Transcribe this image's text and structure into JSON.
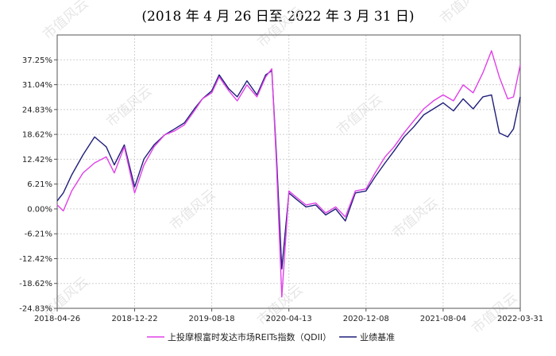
{
  "subtitle": "(2018 年 4 月 26 日至 2022 年 3 月 31 日)",
  "watermark_text": "市值风云",
  "chart_data": {
    "type": "line",
    "title": "",
    "xlabel": "",
    "ylabel": "",
    "x_ticks": [
      "2018-04-26",
      "2018-12-22",
      "2019-08-18",
      "2020-04-13",
      "2020-12-08",
      "2021-08-04",
      "2022-03-31"
    ],
    "y_ticks": [
      "37.25%",
      "31.04%",
      "24.83%",
      "18.62%",
      "12.42%",
      "6.21%",
      "0.00%",
      "-6.21%",
      "-12.42%",
      "-18.62%",
      "-24.83%"
    ],
    "ylim": [
      -24.83,
      43.46
    ],
    "grid": true,
    "legend_position": "bottom",
    "series": [
      {
        "name": "上投摩根富时发达市场REITs指数（QDII）",
        "color": "#e040e8",
        "x": [
          "2018-04-26",
          "2018-05-15",
          "2018-06-10",
          "2018-07-15",
          "2018-08-20",
          "2018-09-25",
          "2018-10-20",
          "2018-11-20",
          "2018-12-22",
          "2019-01-20",
          "2019-02-20",
          "2019-03-25",
          "2019-04-25",
          "2019-05-25",
          "2019-06-25",
          "2019-07-20",
          "2019-08-18",
          "2019-09-10",
          "2019-10-10",
          "2019-11-05",
          "2019-12-05",
          "2020-01-05",
          "2020-02-01",
          "2020-02-20",
          "2020-03-05",
          "2020-03-22",
          "2020-04-13",
          "2020-05-05",
          "2020-06-05",
          "2020-07-05",
          "2020-08-05",
          "2020-09-05",
          "2020-10-05",
          "2020-11-05",
          "2020-12-08",
          "2021-01-05",
          "2021-02-05",
          "2021-03-05",
          "2021-04-05",
          "2021-05-05",
          "2021-06-05",
          "2021-07-05",
          "2021-08-04",
          "2021-09-05",
          "2021-10-05",
          "2021-11-05",
          "2021-12-05",
          "2022-01-01",
          "2022-01-25",
          "2022-02-20",
          "2022-03-10",
          "2022-03-31"
        ],
        "values": [
          1.0,
          -0.5,
          4.5,
          9.0,
          11.5,
          13.0,
          9.0,
          15.5,
          4.0,
          11.0,
          15.5,
          18.5,
          19.5,
          21.0,
          24.5,
          27.5,
          29.0,
          33.0,
          29.5,
          27.0,
          31.0,
          28.0,
          33.0,
          35.0,
          12.0,
          -22.0,
          4.5,
          3.0,
          1.0,
          1.5,
          -1.0,
          0.5,
          -2.0,
          4.5,
          5.0,
          9.0,
          13.0,
          15.5,
          19.0,
          22.0,
          25.0,
          27.0,
          28.5,
          27.0,
          31.0,
          29.0,
          34.0,
          39.5,
          33.0,
          27.5,
          28.0,
          36.0
        ]
      },
      {
        "name": "业绩基准",
        "color": "#1f1f7a",
        "x": [
          "2018-04-26",
          "2018-05-15",
          "2018-06-10",
          "2018-07-15",
          "2018-08-20",
          "2018-09-25",
          "2018-10-20",
          "2018-11-20",
          "2018-12-22",
          "2019-01-20",
          "2019-02-20",
          "2019-03-25",
          "2019-04-25",
          "2019-05-25",
          "2019-06-25",
          "2019-07-20",
          "2019-08-18",
          "2019-09-10",
          "2019-10-10",
          "2019-11-05",
          "2019-12-05",
          "2020-01-05",
          "2020-02-01",
          "2020-02-20",
          "2020-03-05",
          "2020-03-22",
          "2020-04-13",
          "2020-05-05",
          "2020-06-05",
          "2020-07-05",
          "2020-08-05",
          "2020-09-05",
          "2020-10-05",
          "2020-11-05",
          "2020-12-08",
          "2021-01-05",
          "2021-02-05",
          "2021-03-05",
          "2021-04-05",
          "2021-05-05",
          "2021-06-05",
          "2021-07-05",
          "2021-08-04",
          "2021-09-05",
          "2021-10-05",
          "2021-11-05",
          "2021-12-05",
          "2022-01-01",
          "2022-01-25",
          "2022-02-20",
          "2022-03-10",
          "2022-03-31"
        ],
        "values": [
          2.0,
          4.0,
          8.5,
          13.5,
          18.0,
          15.5,
          11.0,
          16.0,
          5.5,
          12.5,
          16.0,
          18.5,
          20.0,
          21.5,
          25.0,
          27.5,
          29.5,
          33.5,
          30.0,
          28.0,
          32.0,
          28.5,
          33.5,
          34.5,
          14.0,
          -15.0,
          4.0,
          2.5,
          0.5,
          1.0,
          -1.5,
          0.0,
          -3.0,
          4.0,
          4.5,
          8.0,
          11.5,
          14.5,
          18.0,
          20.5,
          23.5,
          25.0,
          26.5,
          24.5,
          27.5,
          25.0,
          28.0,
          28.5,
          19.0,
          18.0,
          20.0,
          28.0
        ]
      }
    ]
  }
}
